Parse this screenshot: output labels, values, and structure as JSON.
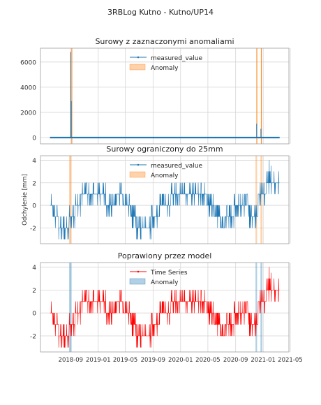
{
  "figure": {
    "suptitle": "3RBLog Kutno - Kutno/UP14"
  },
  "colors": {
    "blue": "#1f77b4",
    "orange": "#ff7f0e",
    "red": "#ff0000",
    "grid": "#d5d5d5",
    "axis": "#a8a8a8"
  },
  "chart_data": [
    {
      "type": "line",
      "title": "Surowy z zaznaczonymi anomaliami",
      "xlabel": "",
      "ylabel": "",
      "ylim": [
        -500,
        7100
      ],
      "yticks": [
        0,
        2000,
        4000,
        6000
      ],
      "x_axis_type": "date",
      "xlim": [
        "2018-04-20",
        "2021-04-25"
      ],
      "grid": true,
      "legend": {
        "position": "top-center",
        "entries": [
          "measured_value",
          "Anomaly"
        ]
      },
      "series": [
        {
          "name": "measured_value",
          "color": "#1f77b4",
          "baseline": 0,
          "spikes": [
            {
              "x": "2018-09-01",
              "y": 6800
            },
            {
              "x": "2018-09-03",
              "y": 2900
            },
            {
              "x": "2020-12-03",
              "y": 1100
            },
            {
              "x": "2020-12-22",
              "y": 700
            }
          ],
          "x_range": [
            "2018-06-01",
            "2021-03-15"
          ]
        }
      ],
      "anomalies": [
        {
          "start": "2018-09-04",
          "end": "2018-09-06",
          "color": "#ff7f0e"
        },
        {
          "start": "2020-12-02",
          "end": "2020-12-04",
          "color": "#ff7f0e"
        },
        {
          "start": "2020-12-22",
          "end": "2020-12-24",
          "color": "#ff7f0e"
        }
      ]
    },
    {
      "type": "line",
      "title": "Surowy ograniczony do 25mm",
      "xlabel": "",
      "ylabel": "Odchylenie [mm]",
      "ylim": [
        -3.4,
        4.4
      ],
      "yticks": [
        -2,
        0,
        2,
        4
      ],
      "x_axis_type": "date",
      "xlim": [
        "2018-04-20",
        "2021-04-25"
      ],
      "grid": true,
      "legend": {
        "position": "top-center",
        "entries": [
          "measured_value",
          "Anomaly"
        ]
      },
      "series": [
        {
          "name": "measured_value",
          "color": "#1f77b4"
        }
      ],
      "anomalies": [
        {
          "start": "2018-08-25",
          "end": "2018-09-05",
          "color": "#ff7f0e"
        },
        {
          "start": "2020-11-28",
          "end": "2020-12-05",
          "color": "#ff7f0e"
        },
        {
          "start": "2020-12-20",
          "end": "2020-12-28",
          "color": "#ff7f0e"
        }
      ]
    },
    {
      "type": "line",
      "title": "Poprawiony przez model",
      "xlabel": "",
      "ylabel": "",
      "ylim": [
        -3.4,
        4.4
      ],
      "yticks": [
        -2,
        0,
        2,
        4
      ],
      "x_axis_type": "date",
      "xlim": [
        "2018-04-20",
        "2021-04-25"
      ],
      "xticks": [
        "2018-09",
        "2019-01",
        "2019-05",
        "2019-09",
        "2020-01",
        "2020-05",
        "2020-09",
        "2021-01",
        "2021-05"
      ],
      "grid": true,
      "legend": {
        "position": "top-center",
        "entries": [
          "Time Series",
          "Anomaly"
        ]
      },
      "series": [
        {
          "name": "Time Series",
          "color": "#ff0000"
        }
      ],
      "anomalies": [
        {
          "start": "2018-08-25",
          "end": "2018-09-05",
          "color": "#1f77b4"
        },
        {
          "start": "2020-11-28",
          "end": "2020-12-05",
          "color": "#1f77b4"
        },
        {
          "start": "2020-12-20",
          "end": "2020-12-28",
          "color": "#1f77b4"
        }
      ]
    }
  ],
  "shared_series": {
    "description_levels": [
      {
        "start": "2018-06-01",
        "end": "2018-06-20",
        "y": 0
      },
      {
        "start": "2018-06-20",
        "end": "2018-07-10",
        "y": -1
      },
      {
        "start": "2018-07-10",
        "end": "2018-08-25",
        "y": -2
      },
      {
        "start": "2018-08-25",
        "end": "2018-09-20",
        "y": -1
      },
      {
        "start": "2018-09-20",
        "end": "2018-10-15",
        "y": 0
      },
      {
        "start": "2018-10-15",
        "end": "2019-02-05",
        "y": 1
      },
      {
        "start": "2019-02-05",
        "end": "2019-03-20",
        "y": 0
      },
      {
        "start": "2019-03-20",
        "end": "2019-04-20",
        "y": 1
      },
      {
        "start": "2019-04-20",
        "end": "2019-05-25",
        "y": 0
      },
      {
        "start": "2019-05-25",
        "end": "2019-06-20",
        "y": -1
      },
      {
        "start": "2019-06-20",
        "end": "2019-08-25",
        "y": -2
      },
      {
        "start": "2019-08-25",
        "end": "2019-10-01",
        "y": -1
      },
      {
        "start": "2019-10-01",
        "end": "2019-11-20",
        "y": 0
      },
      {
        "start": "2019-11-20",
        "end": "2020-04-25",
        "y": 1
      },
      {
        "start": "2020-04-25",
        "end": "2020-06-01",
        "y": 0
      },
      {
        "start": "2020-06-01",
        "end": "2020-06-25",
        "y": -1
      },
      {
        "start": "2020-06-25",
        "end": "2020-07-20",
        "y": -2
      },
      {
        "start": "2020-07-20",
        "end": "2020-08-25",
        "y": -1
      },
      {
        "start": "2020-08-25",
        "end": "2020-11-01",
        "y": 0
      },
      {
        "start": "2020-11-01",
        "end": "2020-12-10",
        "y": -1
      },
      {
        "start": "2020-12-10",
        "end": "2021-01-15",
        "y": 1
      },
      {
        "start": "2021-01-15",
        "end": "2021-02-10",
        "y": 2
      },
      {
        "start": "2021-02-10",
        "end": "2021-03-15",
        "y": 2
      }
    ],
    "extremes": [
      {
        "x": "2018-07-20",
        "y": -3
      },
      {
        "x": "2019-07-10",
        "y": -3
      },
      {
        "x": "2021-01-28",
        "y": 4
      },
      {
        "x": "2021-02-05",
        "y": 3.5
      },
      {
        "x": "2021-01-22",
        "y": 3
      }
    ]
  }
}
